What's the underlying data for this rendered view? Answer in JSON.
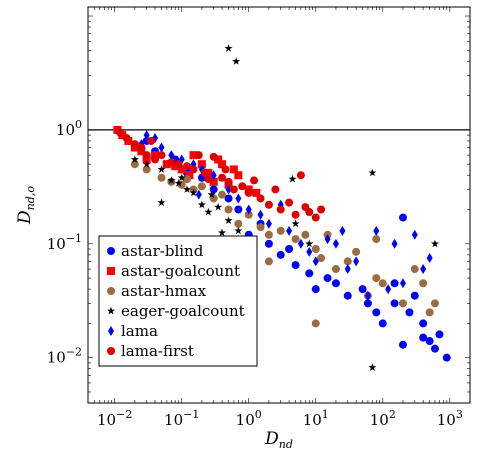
{
  "chart_data": {
    "type": "scatter",
    "x_scale": "log",
    "y_scale": "log",
    "xlim": [
      0.004,
      2000
    ],
    "ylim": [
      0.004,
      12
    ],
    "xlabel": {
      "main": "D",
      "sub": "nd"
    },
    "ylabel": {
      "main": "D",
      "sub": "nd,o"
    },
    "x_ticks": [
      {
        "value": 0.01,
        "base": "10",
        "exp": "−2"
      },
      {
        "value": 0.1,
        "base": "10",
        "exp": "−1"
      },
      {
        "value": 1,
        "base": "10",
        "exp": "0"
      },
      {
        "value": 10,
        "base": "10",
        "exp": "1"
      },
      {
        "value": 100,
        "base": "10",
        "exp": "2"
      },
      {
        "value": 1000,
        "base": "10",
        "exp": "3"
      }
    ],
    "y_ticks": [
      {
        "value": 0.01,
        "base": "10",
        "exp": "−2"
      },
      {
        "value": 0.1,
        "base": "10",
        "exp": "−1"
      },
      {
        "value": 1,
        "base": "10",
        "exp": "0"
      }
    ],
    "reference_line_y": 1,
    "legend_position": "bottom-left",
    "series": [
      {
        "name": "astar-blind",
        "marker": "circle",
        "color": "#0000ff",
        "points": [
          [
            0.03,
            0.8
          ],
          [
            0.04,
            0.65
          ],
          [
            0.06,
            0.5
          ],
          [
            0.08,
            0.55
          ],
          [
            0.12,
            0.42
          ],
          [
            0.2,
            0.38
          ],
          [
            0.3,
            0.3
          ],
          [
            0.5,
            0.25
          ],
          [
            0.7,
            0.2
          ],
          [
            1,
            0.12
          ],
          [
            1.5,
            0.15
          ],
          [
            2,
            0.1
          ],
          [
            3,
            0.08
          ],
          [
            4,
            0.09
          ],
          [
            5,
            0.065
          ],
          [
            8,
            0.055
          ],
          [
            10,
            0.04
          ],
          [
            15,
            0.05
          ],
          [
            20,
            0.045
          ],
          [
            30,
            0.035
          ],
          [
            50,
            0.04
          ],
          [
            60,
            0.03
          ],
          [
            80,
            0.025
          ],
          [
            100,
            0.02
          ],
          [
            150,
            0.03
          ],
          [
            200,
            0.17
          ],
          [
            250,
            0.025
          ],
          [
            300,
            0.035
          ],
          [
            400,
            0.015
          ],
          [
            500,
            0.014
          ],
          [
            600,
            0.012
          ],
          [
            700,
            0.016
          ],
          [
            900,
            0.01
          ],
          [
            200,
            0.013
          ],
          [
            400,
            0.02
          ],
          [
            150,
            0.045
          ]
        ]
      },
      {
        "name": "astar-goalcount",
        "marker": "square",
        "color": "#ff0000",
        "points": [
          [
            0.011,
            1.0
          ],
          [
            0.013,
            0.9
          ],
          [
            0.016,
            0.8
          ],
          [
            0.02,
            0.7
          ],
          [
            0.025,
            0.65
          ],
          [
            0.03,
            0.55
          ],
          [
            0.04,
            0.6
          ],
          [
            0.06,
            0.5
          ],
          [
            0.08,
            0.48
          ],
          [
            0.1,
            0.45
          ],
          [
            0.13,
            0.4
          ],
          [
            0.2,
            0.5
          ],
          [
            0.25,
            0.42
          ],
          [
            0.3,
            0.35
          ],
          [
            0.4,
            0.5
          ],
          [
            0.5,
            0.33
          ],
          [
            0.7,
            0.4
          ],
          [
            1,
            0.3
          ],
          [
            1.3,
            0.28
          ],
          [
            0.6,
            0.45
          ],
          [
            0.35,
            0.55
          ],
          [
            0.15,
            0.6
          ]
        ]
      },
      {
        "name": "astar-hmax",
        "marker": "circle",
        "color": "#9c6b3f",
        "points": [
          [
            0.02,
            0.5
          ],
          [
            0.03,
            0.45
          ],
          [
            0.05,
            0.38
          ],
          [
            0.07,
            0.35
          ],
          [
            0.1,
            0.33
          ],
          [
            0.15,
            0.3
          ],
          [
            0.2,
            0.32
          ],
          [
            0.3,
            0.25
          ],
          [
            0.5,
            0.2
          ],
          [
            0.7,
            0.15
          ],
          [
            1,
            0.18
          ],
          [
            1.5,
            0.14
          ],
          [
            2,
            0.12
          ],
          [
            3,
            0.13
          ],
          [
            5,
            0.11
          ],
          [
            7,
            0.12
          ],
          [
            10,
            0.09
          ],
          [
            12,
            0.075
          ],
          [
            15,
            0.12
          ],
          [
            20,
            0.06
          ],
          [
            30,
            0.07
          ],
          [
            40,
            0.085
          ],
          [
            60,
            0.035
          ],
          [
            80,
            0.05
          ],
          [
            100,
            0.045
          ],
          [
            200,
            0.03
          ],
          [
            300,
            0.06
          ],
          [
            400,
            0.045
          ],
          [
            500,
            0.025
          ],
          [
            600,
            0.03
          ],
          [
            10,
            0.02
          ],
          [
            2,
            0.07
          ],
          [
            0.4,
            0.27
          ],
          [
            0.12,
            0.37
          ],
          [
            80,
            0.11
          ]
        ]
      },
      {
        "name": "eager-goalcount",
        "marker": "star",
        "color": "#000000",
        "points": [
          [
            0.5,
            5.2
          ],
          [
            0.65,
            4.0
          ],
          [
            0.02,
            0.55
          ],
          [
            0.03,
            0.5
          ],
          [
            0.05,
            0.45
          ],
          [
            0.07,
            0.36
          ],
          [
            0.09,
            0.34
          ],
          [
            0.1,
            0.38
          ],
          [
            0.12,
            0.3
          ],
          [
            0.15,
            0.28
          ],
          [
            0.2,
            0.22
          ],
          [
            0.25,
            0.19
          ],
          [
            0.35,
            0.21
          ],
          [
            0.5,
            0.16
          ],
          [
            0.7,
            0.13
          ],
          [
            0.4,
            0.125
          ],
          [
            0.05,
            0.23
          ],
          [
            4.5,
            0.37
          ],
          [
            5,
            0.15
          ],
          [
            8,
            0.1
          ],
          [
            70,
            0.42
          ],
          [
            600,
            0.1
          ],
          [
            70,
            0.0082
          ],
          [
            0.28,
            0.27
          ]
        ]
      },
      {
        "name": "lama",
        "marker": "diamond",
        "color": "#0000ff",
        "points": [
          [
            0.03,
            0.9
          ],
          [
            0.04,
            0.85
          ],
          [
            0.05,
            0.7
          ],
          [
            0.07,
            0.6
          ],
          [
            0.1,
            0.55
          ],
          [
            0.15,
            0.5
          ],
          [
            0.2,
            0.45
          ],
          [
            0.3,
            0.4
          ],
          [
            0.5,
            0.3
          ],
          [
            0.7,
            0.25
          ],
          [
            1,
            0.2
          ],
          [
            1.5,
            0.18
          ],
          [
            2,
            0.15
          ],
          [
            3,
            0.22
          ],
          [
            4,
            0.13
          ],
          [
            6,
            0.1
          ],
          [
            8,
            0.085
          ],
          [
            10,
            0.07
          ],
          [
            15,
            0.11
          ],
          [
            20,
            0.1
          ],
          [
            25,
            0.13
          ],
          [
            30,
            0.06
          ],
          [
            40,
            0.07
          ],
          [
            60,
            0.035
          ],
          [
            80,
            0.13
          ],
          [
            120,
            0.04
          ],
          [
            150,
            0.1
          ],
          [
            200,
            0.045
          ],
          [
            300,
            0.12
          ],
          [
            400,
            0.06
          ],
          [
            500,
            0.075
          ],
          [
            0.025,
            0.75
          ],
          [
            0.18,
            0.27
          ]
        ]
      },
      {
        "name": "lama-first",
        "marker": "circle",
        "color": "#dd0000",
        "points": [
          [
            0.012,
            0.95
          ],
          [
            0.015,
            0.85
          ],
          [
            0.02,
            0.75
          ],
          [
            0.025,
            0.7
          ],
          [
            0.03,
            0.6
          ],
          [
            0.04,
            0.55
          ],
          [
            0.05,
            0.6
          ],
          [
            0.07,
            0.52
          ],
          [
            0.09,
            0.5
          ],
          [
            0.12,
            0.48
          ],
          [
            0.15,
            0.45
          ],
          [
            0.18,
            0.6
          ],
          [
            0.22,
            0.42
          ],
          [
            0.3,
            0.58
          ],
          [
            0.4,
            0.38
          ],
          [
            0.5,
            0.35
          ],
          [
            0.6,
            0.3
          ],
          [
            0.8,
            0.32
          ],
          [
            1,
            0.28
          ],
          [
            1.5,
            0.25
          ],
          [
            2,
            0.22
          ],
          [
            2.5,
            0.3
          ],
          [
            3,
            0.2
          ],
          [
            4,
            0.23
          ],
          [
            5,
            0.18
          ],
          [
            6,
            0.4
          ],
          [
            7,
            0.21
          ],
          [
            8,
            0.19
          ],
          [
            10,
            0.17
          ],
          [
            12,
            0.2
          ],
          [
            1.2,
            0.36
          ],
          [
            0.035,
            0.8
          ],
          [
            0.25,
            0.37
          ],
          [
            0.45,
            0.45
          ]
        ]
      }
    ]
  }
}
